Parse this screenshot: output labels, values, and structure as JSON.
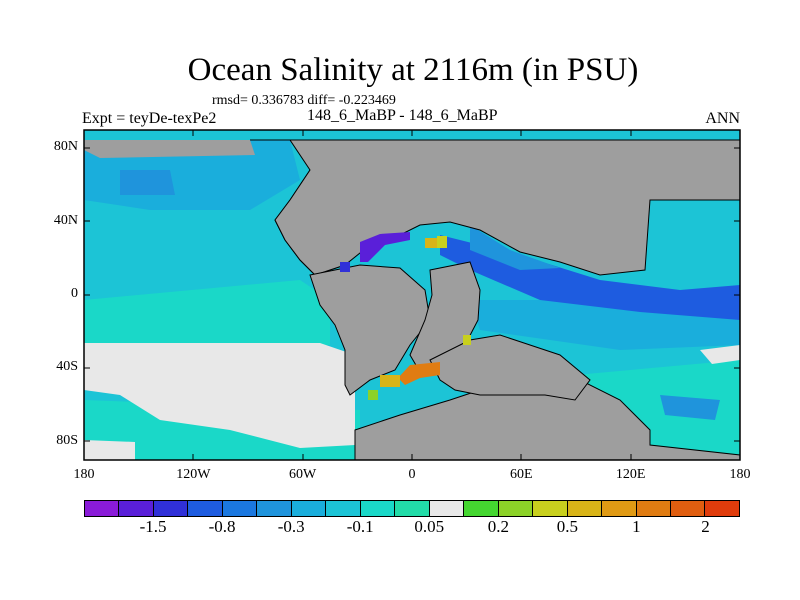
{
  "title": "Ocean Salinity at 2116m (in PSU)",
  "stats": "rmsd= 0.336783 diff= -0.223469",
  "expt_label": "Expt = teyDe-texPe2",
  "case_label": "148_6_MaBP - 148_6_MaBP",
  "season": "ANN",
  "y_axis": {
    "ticks": [
      {
        "label": "80N",
        "lat": 80
      },
      {
        "label": "40N",
        "lat": 40
      },
      {
        "label": "0",
        "lat": 0
      },
      {
        "label": "40S",
        "lat": -40
      },
      {
        "label": "80S",
        "lat": -80
      }
    ]
  },
  "x_axis": {
    "ticks": [
      {
        "label": "180",
        "lon": -180
      },
      {
        "label": "120W",
        "lon": -120
      },
      {
        "label": "60W",
        "lon": -60
      },
      {
        "label": "0",
        "lon": 0
      },
      {
        "label": "60E",
        "lon": 60
      },
      {
        "label": "120E",
        "lon": 120
      },
      {
        "label": "180",
        "lon": 180
      }
    ]
  },
  "colorbar": {
    "colors": [
      "#8a1bd8",
      "#5a1fd9",
      "#3030d8",
      "#1e5ce0",
      "#1b78e0",
      "#1f94dc",
      "#1aaedc",
      "#1cc4d6",
      "#1ad8c8",
      "#22dca8",
      "#e8e8e8",
      "#44d630",
      "#8cd228",
      "#c8d01e",
      "#d8b418",
      "#e09a14",
      "#e07c12",
      "#e05e10",
      "#e03c0c"
    ],
    "labels": [
      {
        "label": "-1.5",
        "index": 2
      },
      {
        "label": "-0.8",
        "index": 4
      },
      {
        "label": "-0.3",
        "index": 6
      },
      {
        "label": "-0.1",
        "index": 8
      },
      {
        "label": "0.05",
        "index": 10
      },
      {
        "label": "0.2",
        "index": 12
      },
      {
        "label": "0.5",
        "index": 14
      },
      {
        "label": "1",
        "index": 16
      },
      {
        "label": "2",
        "index": 18
      }
    ]
  },
  "map_colors": {
    "land": "#9e9e9e",
    "ocean_base": "#1cc4d6",
    "ocean_light": "#1ad8c8",
    "ocean_mid": "#1aaedc",
    "ocean_deep": "#1f94dc",
    "ocean_deeper": "#1e5ce0",
    "neutral": "#e8e8e8",
    "purple": "#3030d8",
    "orange": "#e07c12",
    "gold": "#d8b418",
    "green": "#8cd228"
  }
}
